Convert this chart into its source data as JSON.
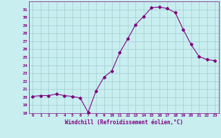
{
  "x": [
    0,
    1,
    2,
    3,
    4,
    5,
    6,
    7,
    8,
    9,
    10,
    11,
    12,
    13,
    14,
    15,
    16,
    17,
    18,
    19,
    20,
    21,
    22,
    23
  ],
  "y": [
    20.1,
    20.2,
    20.2,
    20.4,
    20.2,
    20.1,
    19.9,
    18.1,
    20.8,
    22.5,
    23.3,
    25.6,
    27.3,
    29.1,
    30.1,
    31.2,
    31.3,
    31.1,
    30.6,
    28.5,
    26.6,
    25.1,
    24.7,
    24.6
  ],
  "line_color": "#800080",
  "marker": "D",
  "marker_size": 2,
  "bg_color": "#c8eef0",
  "grid_color": "#a0ccd0",
  "xlabel": "Windchill (Refroidissement éolien,°C)",
  "xlabel_color": "#800080",
  "tick_color": "#800080",
  "ylim": [
    18,
    32
  ],
  "yticks": [
    18,
    19,
    20,
    21,
    22,
    23,
    24,
    25,
    26,
    27,
    28,
    29,
    30,
    31
  ],
  "xlim": [
    -0.5,
    23.5
  ],
  "xticks": [
    0,
    1,
    2,
    3,
    4,
    5,
    6,
    7,
    8,
    9,
    10,
    11,
    12,
    13,
    14,
    15,
    16,
    17,
    18,
    19,
    20,
    21,
    22,
    23
  ]
}
